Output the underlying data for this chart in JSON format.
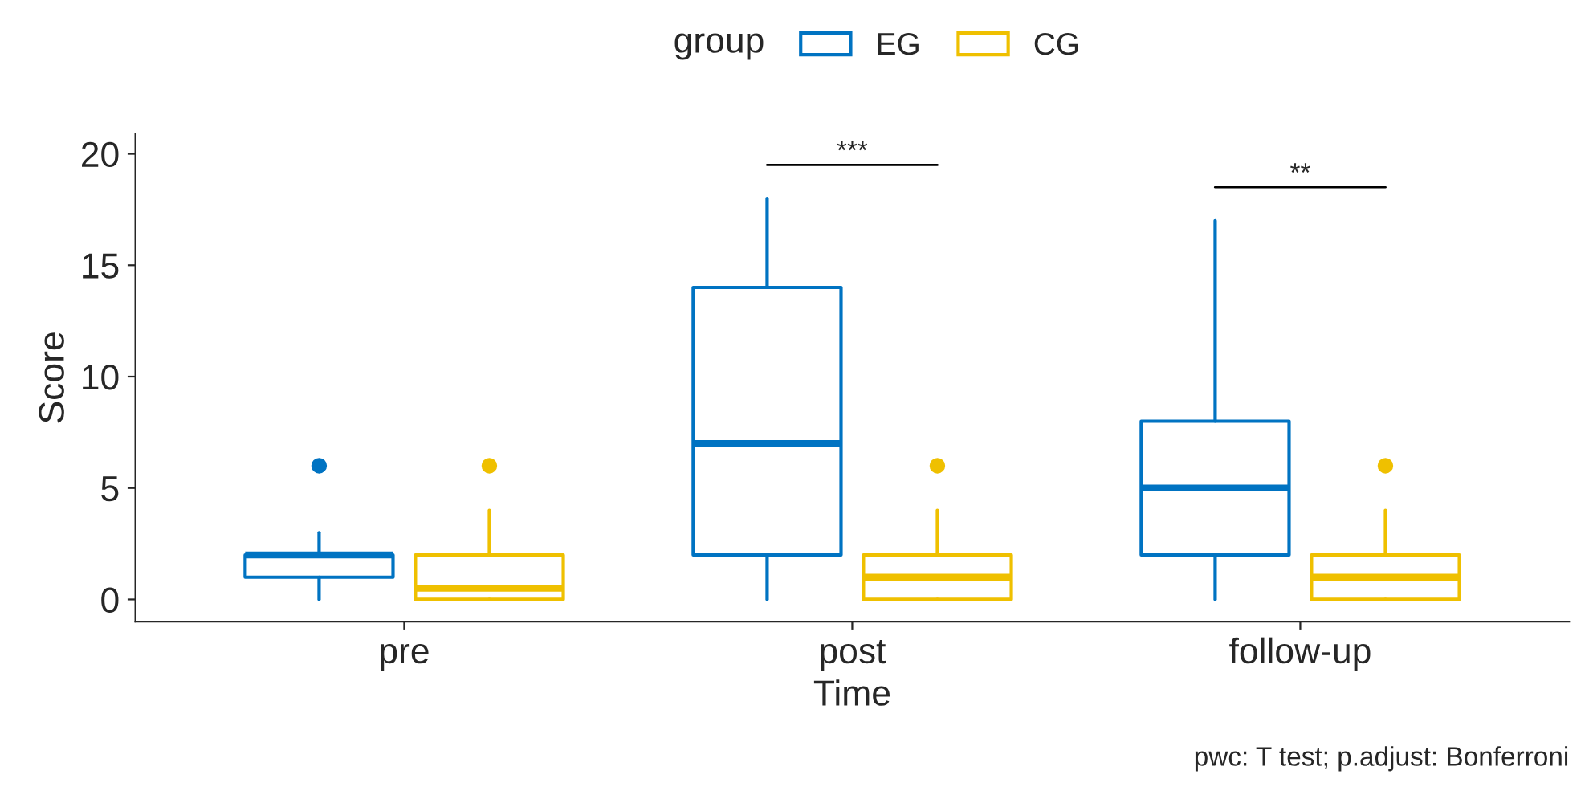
{
  "chart_data": {
    "type": "box",
    "xlabel": "Time",
    "ylabel": "Score",
    "legend_title": "group",
    "legend": "top",
    "grid": false,
    "categories": [
      "pre",
      "post",
      "follow-up"
    ],
    "ylim": [
      -1,
      20.9
    ],
    "yticks": [
      0,
      5,
      10,
      15,
      20
    ],
    "series": [
      {
        "name": "EG",
        "color": "#0073c2",
        "boxes": [
          {
            "low": 0,
            "q1": 1,
            "median": 2,
            "q3": 2,
            "high": 3,
            "outliers": [
              6
            ]
          },
          {
            "low": 0,
            "q1": 2,
            "median": 7,
            "q3": 14,
            "high": 18
          },
          {
            "low": 0,
            "q1": 2,
            "median": 5,
            "q3": 8,
            "high": 17
          }
        ]
      },
      {
        "name": "CG",
        "color": "#efc000",
        "boxes": [
          {
            "low": 0,
            "q1": 0,
            "median": 0.5,
            "q3": 2,
            "high": 4,
            "outliers": [
              6
            ]
          },
          {
            "low": 0,
            "q1": 0,
            "median": 1,
            "q3": 2,
            "high": 4,
            "outliers": [
              6
            ]
          },
          {
            "low": 0,
            "q1": 0,
            "median": 1,
            "q3": 2,
            "high": 4,
            "outliers": [
              6
            ]
          }
        ]
      }
    ],
    "annotations": [
      "***",
      "**",
      "pwc: T test; p.adjust: Bonferroni"
    ]
  }
}
